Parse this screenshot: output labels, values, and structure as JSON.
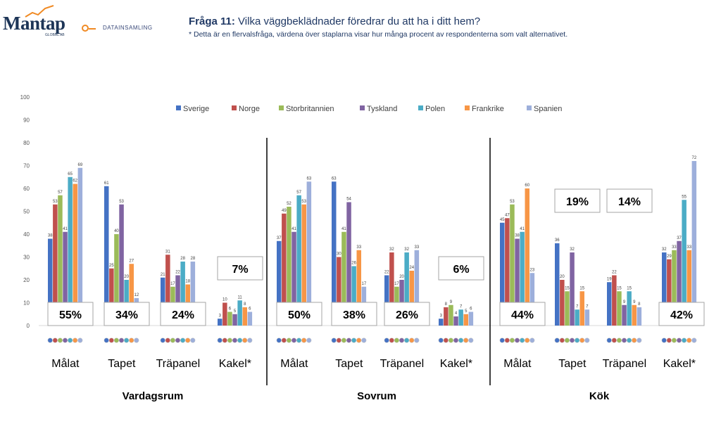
{
  "header": {
    "logo_text": "Mantap",
    "logo_sub": "GLOBAL AB",
    "section_label": "DATAINSAMLING",
    "question_number": "Fråga 11:",
    "question_text": "Vilka väggbeklädnader föredrar du att ha i ditt hem?",
    "note": "* Detta är en flervalsfråga, värdena över staplarna visar hur många procent av respondenterna som valt alternativet."
  },
  "colors": {
    "Sverige": "#4472c4",
    "Norge": "#c0504d",
    "Storbritannien": "#9bbb59",
    "Tyskland": "#8064a2",
    "Polen": "#4bacc6",
    "Frankrike": "#f79646",
    "Spanien": "#9dafdb"
  },
  "chart_data": {
    "type": "bar",
    "ylim": [
      0,
      100
    ],
    "yticks": [
      "0",
      "10",
      "20",
      "30",
      "40",
      "50",
      "60",
      "70",
      "80",
      "90",
      "100"
    ],
    "legend": [
      "Sverige",
      "Norge",
      "Storbritannien",
      "Tyskland",
      "Polen",
      "Frankrike",
      "Spanien"
    ],
    "legend_position": "top",
    "groups": [
      {
        "room": "Vardagsrum",
        "categories": [
          {
            "label": "Målat",
            "values": [
              38,
              53,
              57,
              41,
              65,
              62,
              69
            ],
            "labels": [
              "38",
              "53",
              "57",
              "41",
              "65",
              "62",
              "69"
            ],
            "total": "55%"
          },
          {
            "label": "Tapet",
            "values": [
              61,
              25,
              40,
              53,
              20,
              27,
              12
            ],
            "labels": [
              "61",
              "25",
              "40",
              "53",
              "20",
              "27",
              "12"
            ],
            "total": "34%"
          },
          {
            "label": "Träpanel",
            "values": [
              21,
              31,
              17,
              22,
              28,
              18,
              28
            ],
            "labels": [
              "21",
              "31",
              "17",
              "22",
              "28",
              "18",
              "28"
            ],
            "total": "24%"
          },
          {
            "label": "Kakel*",
            "values": [
              3,
              10,
              6,
              5,
              11,
              8,
              6
            ],
            "labels": [
              "3",
              "10",
              "6",
              "5",
              "11",
              "8",
              "6"
            ],
            "total": "7%"
          }
        ]
      },
      {
        "room": "Sovrum",
        "categories": [
          {
            "label": "Målat",
            "values": [
              37,
              49,
              52,
              41,
              57,
              53,
              63
            ],
            "labels": [
              "37",
              "49",
              "52",
              "41",
              "57",
              "53",
              "63"
            ],
            "total": "50%"
          },
          {
            "label": "Tapet",
            "values": [
              63,
              30,
              41,
              54,
              26,
              33,
              17
            ],
            "labels": [
              "63",
              "30",
              "41",
              "54",
              "26",
              "33",
              "17"
            ],
            "total": "38%"
          },
          {
            "label": "Träpanel",
            "values": [
              22,
              32,
              17,
              20,
              32,
              24,
              33
            ],
            "labels": [
              "22",
              "32",
              "17",
              "20",
              "32",
              "24",
              "33"
            ],
            "total": "26%"
          },
          {
            "label": "Kakel*",
            "values": [
              3,
              8,
              9,
              4,
              7,
              5,
              6
            ],
            "labels": [
              "3",
              "8",
              "9",
              "4",
              "7",
              "5",
              "6"
            ],
            "total": "6%"
          }
        ]
      },
      {
        "room": "Kök",
        "categories": [
          {
            "label": "Målat",
            "values": [
              45,
              47,
              53,
              38,
              41,
              60,
              23
            ],
            "labels": [
              "45",
              "47",
              "53",
              "38",
              "41",
              "60",
              "23"
            ],
            "total": "44%"
          },
          {
            "label": "Tapet",
            "values": [
              36,
              20,
              15,
              32,
              7,
              15,
              7
            ],
            "labels": [
              "36",
              "20",
              "15",
              "32",
              "7",
              "15",
              "7"
            ],
            "total": "19%"
          },
          {
            "label": "Träpanel",
            "values": [
              19,
              22,
              15,
              9,
              15,
              9,
              8
            ],
            "labels": [
              "19",
              "22",
              "15",
              "9",
              "15",
              "9",
              "8"
            ],
            "total": "14%"
          },
          {
            "label": "Kakel*",
            "values": [
              32,
              29,
              33,
              37,
              55,
              33,
              72
            ],
            "labels": [
              "32",
              "29",
              "33",
              "37",
              "55",
              "33",
              "72"
            ],
            "total": "42%"
          }
        ]
      }
    ]
  }
}
